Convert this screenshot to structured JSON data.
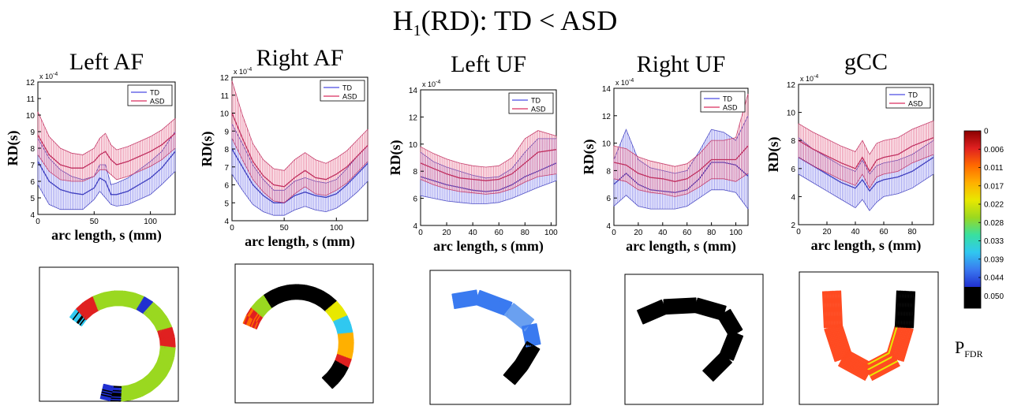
{
  "figure": {
    "title_main": "H",
    "title_sub": "1",
    "title_rest": "(RD): TD < ASD"
  },
  "colors": {
    "td": "#6a6ae8",
    "td_fill": "#b8b8f0",
    "asd": "#e0507a",
    "asd_fill": "#f3a9c2",
    "mean_asd": "#c03060",
    "mean_td": "#4040c0"
  },
  "colorbar": {
    "label_main": "P",
    "label_sub": "FDR",
    "ticks": [
      "0",
      "0.006",
      "0.011",
      "0.017",
      "0.022",
      "0.028",
      "0.033",
      "0.039",
      "0.044",
      "0.050"
    ]
  },
  "chart_data": [
    {
      "type": "line",
      "title": "Left AF",
      "xlabel": "arc length, s (mm)",
      "ylabel": "RD(s)",
      "exponent_label": "x 10",
      "exponent": "-4",
      "xlim": [
        0,
        122
      ],
      "ylim": [
        4,
        12
      ],
      "xticks": [
        0,
        50,
        100
      ],
      "yticks": [
        4,
        5,
        6,
        7,
        8,
        9,
        10,
        11,
        12
      ],
      "legend": [
        "TD",
        "ASD"
      ],
      "legend_position": "top-right",
      "x": [
        0,
        10,
        20,
        30,
        40,
        50,
        55,
        60,
        65,
        70,
        80,
        90,
        100,
        110,
        122
      ],
      "series": [
        {
          "name": "TD",
          "mean": [
            7.2,
            6.0,
            5.5,
            5.3,
            5.2,
            5.6,
            6.2,
            6.0,
            5.2,
            5.2,
            5.4,
            5.8,
            6.2,
            6.8,
            7.8
          ],
          "lower": [
            5.8,
            4.6,
            4.3,
            4.3,
            4.3,
            4.9,
            5.4,
            5.0,
            4.6,
            4.5,
            4.6,
            4.9,
            5.2,
            5.8,
            6.6
          ],
          "upper": [
            8.6,
            7.4,
            6.7,
            6.3,
            6.1,
            6.3,
            7.0,
            7.0,
            5.8,
            5.9,
            6.2,
            6.7,
            7.2,
            7.8,
            9.0
          ]
        },
        {
          "name": "ASD",
          "mean": [
            8.8,
            7.6,
            7.0,
            6.8,
            6.8,
            7.2,
            7.6,
            7.8,
            7.3,
            7.0,
            7.2,
            7.5,
            7.8,
            8.2,
            8.9
          ],
          "lower": [
            7.6,
            6.6,
            6.1,
            6.0,
            6.0,
            6.3,
            6.7,
            6.7,
            6.4,
            6.1,
            6.3,
            6.6,
            6.9,
            7.3,
            8.0
          ],
          "upper": [
            10.2,
            8.7,
            8.0,
            7.7,
            7.6,
            8.0,
            8.6,
            8.9,
            8.2,
            7.9,
            8.1,
            8.4,
            8.7,
            9.1,
            9.8
          ]
        }
      ]
    },
    {
      "type": "line",
      "title": "Right AF",
      "xlabel": "arc length, s (mm)",
      "ylabel": "RD(s)",
      "exponent_label": "x 10",
      "exponent": "-4",
      "xlim": [
        0,
        130
      ],
      "ylim": [
        4,
        12
      ],
      "xticks": [
        0,
        50,
        100
      ],
      "yticks": [
        4,
        5,
        6,
        7,
        8,
        9,
        10,
        11,
        12
      ],
      "legend": [
        "TD",
        "ASD"
      ],
      "legend_position": "top-right",
      "x": [
        0,
        10,
        20,
        30,
        40,
        50,
        60,
        70,
        80,
        90,
        100,
        110,
        120,
        130
      ],
      "series": [
        {
          "name": "TD",
          "mean": [
            8.0,
            7.0,
            6.0,
            5.4,
            5.0,
            5.0,
            5.4,
            5.6,
            5.4,
            5.3,
            5.5,
            6.0,
            6.6,
            7.2
          ],
          "lower": [
            6.6,
            5.7,
            4.9,
            4.5,
            4.3,
            4.3,
            4.6,
            4.8,
            4.6,
            4.5,
            4.7,
            5.1,
            5.6,
            6.2
          ],
          "upper": [
            9.4,
            8.3,
            7.1,
            6.3,
            5.7,
            5.7,
            6.2,
            6.4,
            6.2,
            6.1,
            6.3,
            6.9,
            7.6,
            8.2
          ]
        },
        {
          "name": "ASD",
          "mean": [
            10.0,
            8.6,
            7.3,
            6.5,
            6.0,
            5.9,
            6.4,
            6.8,
            6.4,
            6.3,
            6.6,
            7.0,
            7.6,
            8.2
          ],
          "lower": [
            8.6,
            7.4,
            6.3,
            5.6,
            5.1,
            5.0,
            5.5,
            5.9,
            5.5,
            5.4,
            5.7,
            6.1,
            6.7,
            7.3
          ],
          "upper": [
            11.8,
            9.9,
            8.3,
            7.4,
            6.9,
            6.8,
            7.4,
            7.8,
            7.4,
            7.2,
            7.5,
            7.9,
            8.5,
            9.1
          ]
        }
      ]
    },
    {
      "type": "line",
      "title": "Left UF",
      "xlabel": "arc length, s (mm)",
      "ylabel": "RD(s)",
      "exponent_label": "x 10",
      "exponent": "-4",
      "xlim": [
        0,
        104
      ],
      "ylim": [
        4,
        14
      ],
      "xticks": [
        0,
        20,
        40,
        60,
        80,
        100
      ],
      "yticks": [
        4,
        6,
        8,
        10,
        12,
        14
      ],
      "legend": [
        "TD",
        "ASD"
      ],
      "legend_position": "top-right",
      "x": [
        0,
        10,
        20,
        30,
        40,
        50,
        60,
        70,
        80,
        90,
        104
      ],
      "series": [
        {
          "name": "TD",
          "mean": [
            7.6,
            7.3,
            7.0,
            6.8,
            6.6,
            6.5,
            6.6,
            7.0,
            7.6,
            8.0,
            8.6
          ],
          "lower": [
            6.2,
            6.0,
            5.8,
            5.7,
            5.6,
            5.6,
            5.7,
            6.0,
            6.4,
            6.8,
            7.3
          ],
          "upper": [
            9.4,
            8.7,
            8.3,
            8.0,
            7.7,
            7.5,
            7.6,
            8.2,
            9.4,
            10.4,
            10.4
          ]
        },
        {
          "name": "ASD",
          "mean": [
            8.6,
            8.2,
            7.8,
            7.5,
            7.4,
            7.3,
            7.4,
            7.8,
            8.6,
            9.4,
            9.6
          ],
          "lower": [
            7.4,
            7.0,
            6.7,
            6.5,
            6.4,
            6.3,
            6.4,
            6.7,
            7.2,
            7.6,
            7.8
          ],
          "upper": [
            9.8,
            9.3,
            8.9,
            8.6,
            8.4,
            8.3,
            8.4,
            9.0,
            10.4,
            11.0,
            10.6
          ]
        }
      ]
    },
    {
      "type": "line",
      "title": "Right UF",
      "xlabel": "arc length, s (mm)",
      "ylabel": "RD(s)",
      "exponent_label": "x 10",
      "exponent": "-4",
      "xlim": [
        0,
        110
      ],
      "ylim": [
        4,
        14
      ],
      "xticks": [
        0,
        20,
        40,
        60,
        80,
        100
      ],
      "yticks": [
        4,
        6,
        8,
        10,
        12,
        14
      ],
      "legend": [
        "TD",
        "ASD"
      ],
      "legend_position": "top-right",
      "x": [
        0,
        10,
        20,
        30,
        40,
        50,
        60,
        70,
        80,
        90,
        100,
        110
      ],
      "series": [
        {
          "name": "TD",
          "mean": [
            7.0,
            7.8,
            7.0,
            6.6,
            6.5,
            6.4,
            6.6,
            7.4,
            8.6,
            8.6,
            8.4,
            7.6
          ],
          "lower": [
            5.4,
            6.2,
            5.4,
            5.2,
            5.2,
            5.2,
            5.4,
            6.0,
            6.6,
            6.6,
            6.4,
            5.2
          ],
          "upper": [
            8.8,
            11.0,
            8.8,
            8.2,
            8.0,
            7.8,
            8.0,
            9.4,
            11.0,
            10.8,
            10.2,
            12.0
          ]
        },
        {
          "name": "ASD",
          "mean": [
            8.6,
            8.4,
            7.8,
            7.5,
            7.4,
            7.2,
            7.4,
            8.0,
            8.8,
            8.8,
            8.8,
            9.8
          ],
          "lower": [
            7.4,
            7.2,
            6.6,
            6.4,
            6.3,
            6.1,
            6.3,
            6.8,
            7.4,
            7.4,
            7.2,
            7.8
          ],
          "upper": [
            9.8,
            9.6,
            9.0,
            8.7,
            8.5,
            8.3,
            8.5,
            9.2,
            10.2,
            10.2,
            10.4,
            13.6
          ]
        }
      ]
    },
    {
      "type": "line",
      "title": "gCC",
      "xlabel": "arc length, s (mm)",
      "ylabel": "RD(s)",
      "exponent_label": "x 10",
      "exponent": "-4",
      "xlim": [
        0,
        95
      ],
      "ylim": [
        2,
        12
      ],
      "xticks": [
        0,
        20,
        40,
        60,
        80
      ],
      "yticks": [
        2,
        4,
        6,
        8,
        10,
        12
      ],
      "legend": [
        "TD",
        "ASD"
      ],
      "legend_position": "top-right",
      "x": [
        0,
        10,
        20,
        30,
        40,
        45,
        50,
        55,
        60,
        70,
        80,
        95
      ],
      "series": [
        {
          "name": "TD",
          "mean": [
            6.8,
            6.2,
            5.6,
            5.0,
            4.6,
            5.2,
            4.4,
            5.0,
            5.2,
            5.4,
            5.8,
            6.8
          ],
          "lower": [
            5.6,
            5.0,
            4.4,
            3.8,
            3.2,
            3.8,
            3.0,
            3.6,
            4.0,
            4.2,
            4.6,
            5.6
          ],
          "upper": [
            8.2,
            7.4,
            6.8,
            6.2,
            5.8,
            6.6,
            5.6,
            6.2,
            6.4,
            6.6,
            7.0,
            8.0
          ]
        },
        {
          "name": "ASD",
          "mean": [
            8.0,
            7.4,
            6.9,
            6.4,
            6.0,
            6.8,
            5.8,
            6.6,
            6.8,
            7.0,
            7.6,
            8.2
          ],
          "lower": [
            6.8,
            6.2,
            5.7,
            5.2,
            4.8,
            5.6,
            4.6,
            5.4,
            5.6,
            5.8,
            6.4,
            7.0
          ],
          "upper": [
            9.2,
            8.6,
            8.1,
            7.6,
            7.2,
            8.0,
            7.0,
            7.8,
            8.0,
            8.2,
            8.8,
            9.4
          ]
        }
      ]
    }
  ],
  "tract_images": [
    {
      "name": "Left AF tract"
    },
    {
      "name": "Right AF tract"
    },
    {
      "name": "Left UF tract"
    },
    {
      "name": "Right UF tract"
    },
    {
      "name": "gCC tract"
    }
  ]
}
